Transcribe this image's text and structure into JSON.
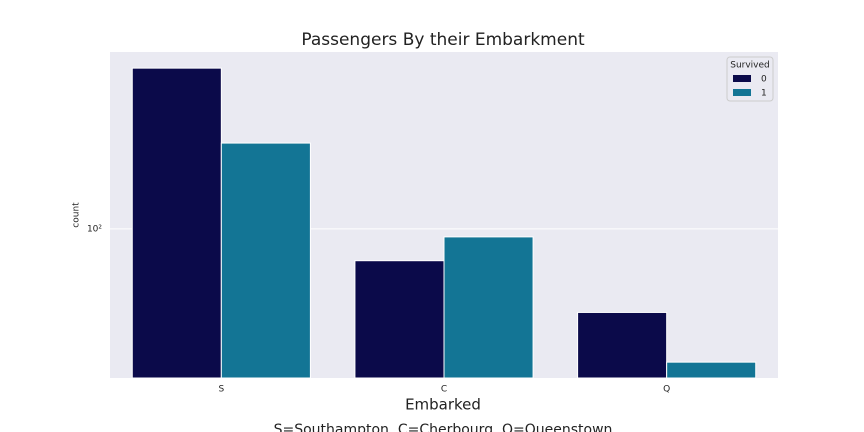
{
  "chart_data": {
    "type": "bar",
    "title": "Passengers By their Embarkment",
    "x_label": "Embarked",
    "y_label": "count",
    "subtitle": "S=Southampton, C=Cherbourg, Q=Queenstown",
    "categories": [
      "S",
      "C",
      "Q"
    ],
    "legend_title": "Survived",
    "legend_position": "upper right",
    "series": [
      {
        "name": "0",
        "color": "#0b0a4a",
        "values": [
          427,
          75,
          47
        ]
      },
      {
        "name": "1",
        "color": "#137595",
        "values": [
          217,
          93,
          30
        ]
      }
    ],
    "log_scale": true,
    "ylim": [
      26,
      494
    ],
    "yticks": [
      {
        "value": 100,
        "label": "10²"
      }
    ],
    "grid": true
  }
}
